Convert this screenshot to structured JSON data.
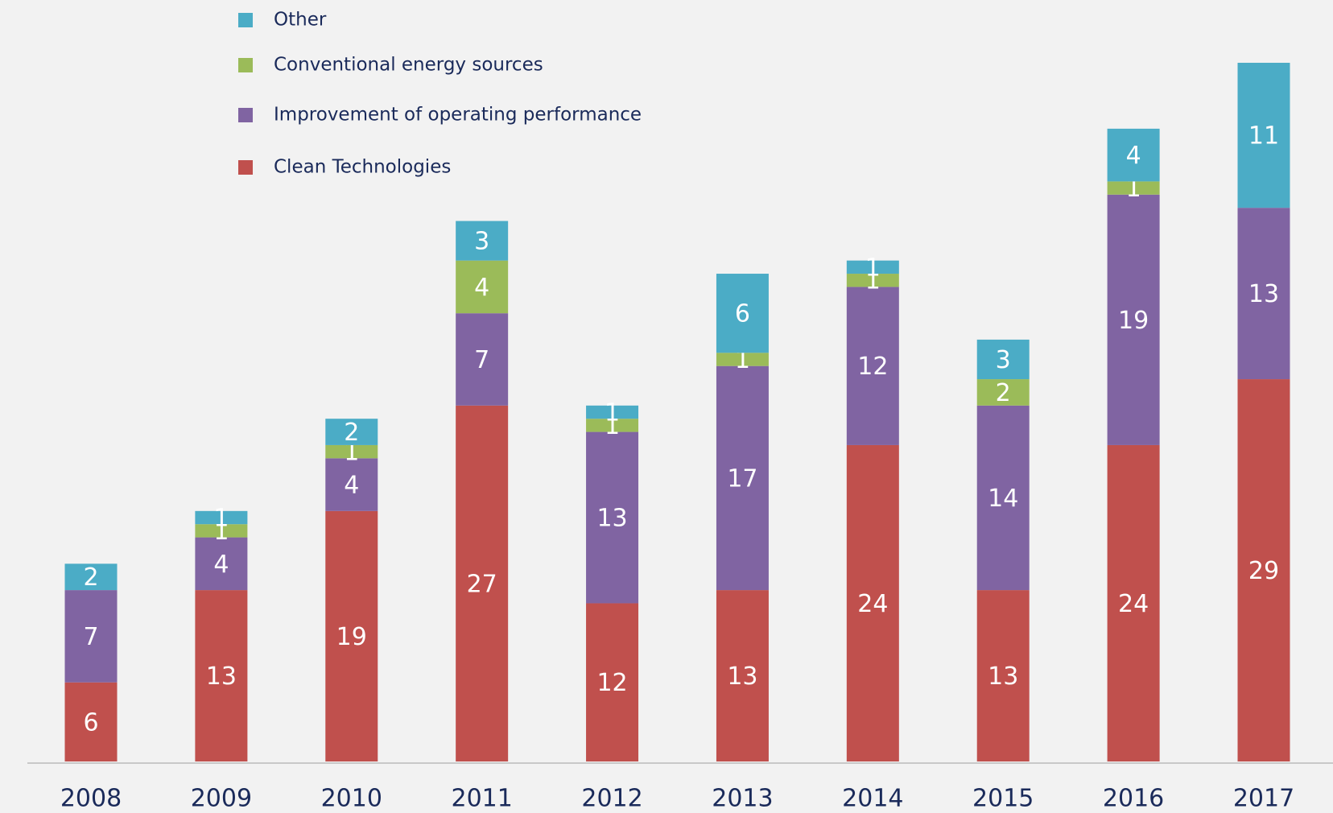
{
  "chart_data": {
    "type": "stacked_bar",
    "categories": [
      "2008",
      "2009",
      "2010",
      "2011",
      "2012",
      "2013",
      "2014",
      "2015",
      "2016",
      "2017"
    ],
    "series": [
      {
        "name": "Clean Technologies",
        "color": "#c0504d",
        "values": [
          6,
          13,
          19,
          27,
          12,
          13,
          24,
          13,
          24,
          29
        ]
      },
      {
        "name": "Improvement of operating performance",
        "color": "#8064a2",
        "values": [
          7,
          4,
          4,
          7,
          13,
          17,
          12,
          14,
          19,
          13
        ]
      },
      {
        "name": "Conventional energy sources",
        "color": "#9bbb59",
        "values": [
          null,
          1,
          1,
          4,
          1,
          1,
          1,
          2,
          1,
          null
        ]
      },
      {
        "name": "Other",
        "color": "#4bacc6",
        "values": [
          2,
          1,
          2,
          3,
          1,
          6,
          1,
          3,
          4,
          11
        ]
      }
    ]
  }
}
